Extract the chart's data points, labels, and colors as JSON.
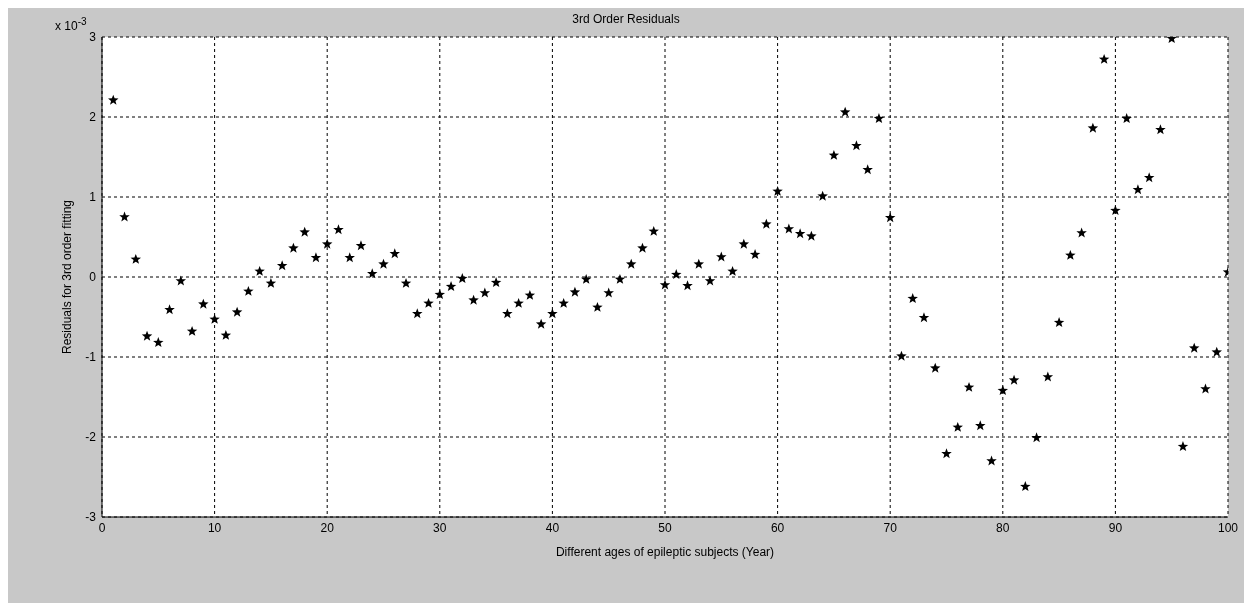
{
  "chart_data": {
    "type": "scatter",
    "title": "3rd Order Residuals",
    "xlabel": "Different ages of epileptic subjects (Year)",
    "ylabel": "Residuals for 3rd order fitting",
    "annotations": [
      "x 10$^{-3}$"
    ],
    "x": [
      1,
      2,
      3,
      4,
      5,
      6,
      7,
      8,
      9,
      10,
      11,
      12,
      13,
      14,
      15,
      16,
      17,
      18,
      19,
      20,
      21,
      22,
      23,
      24,
      25,
      26,
      27,
      28,
      29,
      30,
      31,
      32,
      33,
      34,
      35,
      36,
      37,
      38,
      39,
      40,
      41,
      42,
      43,
      44,
      45,
      46,
      47,
      48,
      49,
      50,
      51,
      52,
      53,
      54,
      55,
      56,
      57,
      58,
      59,
      60,
      61,
      62,
      63,
      64,
      65,
      66,
      67,
      68,
      69,
      70,
      71,
      72,
      73,
      74,
      75,
      76,
      77,
      78,
      79,
      80,
      81,
      82,
      83,
      84,
      85,
      86,
      87,
      88,
      89,
      90,
      91,
      92,
      93,
      94,
      95,
      96,
      97,
      98,
      99,
      100
    ],
    "values": [
      2.21,
      0.75,
      0.22,
      -0.74,
      -0.82,
      -0.41,
      -0.05,
      -0.68,
      -0.34,
      -0.53,
      -0.73,
      -0.44,
      -0.18,
      0.07,
      -0.08,
      0.14,
      0.36,
      0.56,
      0.24,
      0.41,
      0.59,
      0.24,
      0.39,
      0.04,
      0.16,
      0.29,
      -0.08,
      -0.46,
      -0.33,
      -0.22,
      -0.12,
      -0.02,
      -0.29,
      -0.2,
      -0.07,
      -0.46,
      -0.33,
      -0.23,
      -0.59,
      -0.46,
      -0.33,
      -0.19,
      -0.03,
      -0.38,
      -0.2,
      -0.03,
      0.16,
      0.36,
      0.57,
      -0.1,
      0.03,
      -0.11,
      0.16,
      -0.05,
      0.25,
      0.07,
      0.41,
      0.28,
      0.66,
      1.07,
      0.6,
      0.54,
      0.51,
      1.01,
      1.52,
      2.06,
      1.64,
      1.34,
      1.98,
      0.74,
      -0.99,
      -0.27,
      -0.51,
      -1.14,
      -2.21,
      -1.88,
      -1.38,
      -1.86,
      -2.3,
      -1.42,
      -1.29,
      -2.62,
      -2.01,
      -1.25,
      -0.57,
      0.27,
      0.55,
      1.86,
      2.72,
      0.83,
      1.98,
      1.09,
      1.24,
      1.84,
      2.98,
      -2.12,
      -0.89,
      -1.4,
      -0.94,
      0.06
    ],
    "color": "#000000",
    "marker": "star",
    "xlim": [
      0,
      100
    ],
    "xticks": [
      0,
      10,
      20,
      30,
      40,
      50,
      60,
      70,
      80,
      90,
      100
    ],
    "ylim": [
      -3,
      3
    ],
    "yticks": [
      -3,
      -2,
      -1,
      0,
      1,
      2,
      3
    ],
    "grid": true
  }
}
